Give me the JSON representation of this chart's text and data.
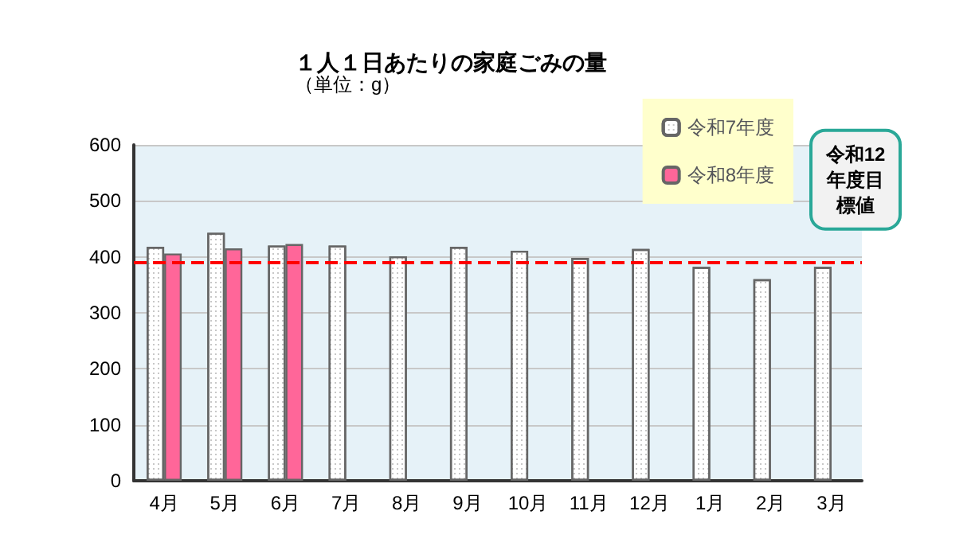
{
  "chart_data": {
    "type": "bar",
    "title": "１人１日あたりの家庭ごみの量",
    "subtitle": "（単位：g）",
    "categories": [
      "4月",
      "5月",
      "6月",
      "7月",
      "8月",
      "9月",
      "10月",
      "11月",
      "12月",
      "1月",
      "2月",
      "3月"
    ],
    "series": [
      {
        "name": "令和7年度",
        "color": "#ffffff",
        "values": [
          418,
          443,
          420,
          420,
          401,
          418,
          411,
          398,
          414,
          382,
          360,
          382
        ]
      },
      {
        "name": "令和8年度",
        "color": "#ff6699",
        "values": [
          406,
          415,
          423,
          null,
          null,
          null,
          null,
          null,
          null,
          null,
          null,
          null
        ]
      }
    ],
    "ylim": [
      0,
      600
    ],
    "yticks": [
      0,
      100,
      200,
      300,
      400,
      500,
      600
    ],
    "grid": "y",
    "legend": "top right",
    "ref_lines": [
      {
        "axis": "y",
        "value": 390,
        "label": "令和12年度目標値",
        "color": "#ff0000",
        "line_style": "dashed"
      }
    ]
  }
}
